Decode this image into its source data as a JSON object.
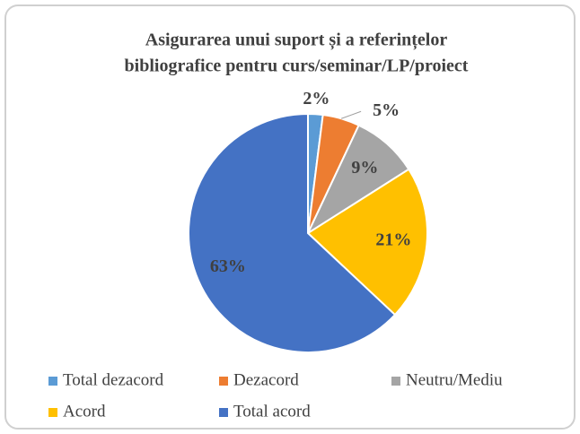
{
  "chart_data": {
    "type": "pie",
    "title": [
      "Asigurarea unui suport și a referințelor",
      "bibliografice pentru curs/seminar/LP/proiect"
    ],
    "categories": [
      "Total dezacord",
      "Dezacord",
      "Neutru/Mediu",
      "Acord",
      "Total acord"
    ],
    "values": [
      2,
      5,
      9,
      21,
      63
    ],
    "value_labels": [
      "2%",
      "5%",
      "9%",
      "21%",
      "63%"
    ],
    "colors": [
      "#5b9bd5",
      "#ed7d31",
      "#a5a5a5",
      "#ffc000",
      "#4472c4"
    ],
    "legend": "bottom"
  }
}
